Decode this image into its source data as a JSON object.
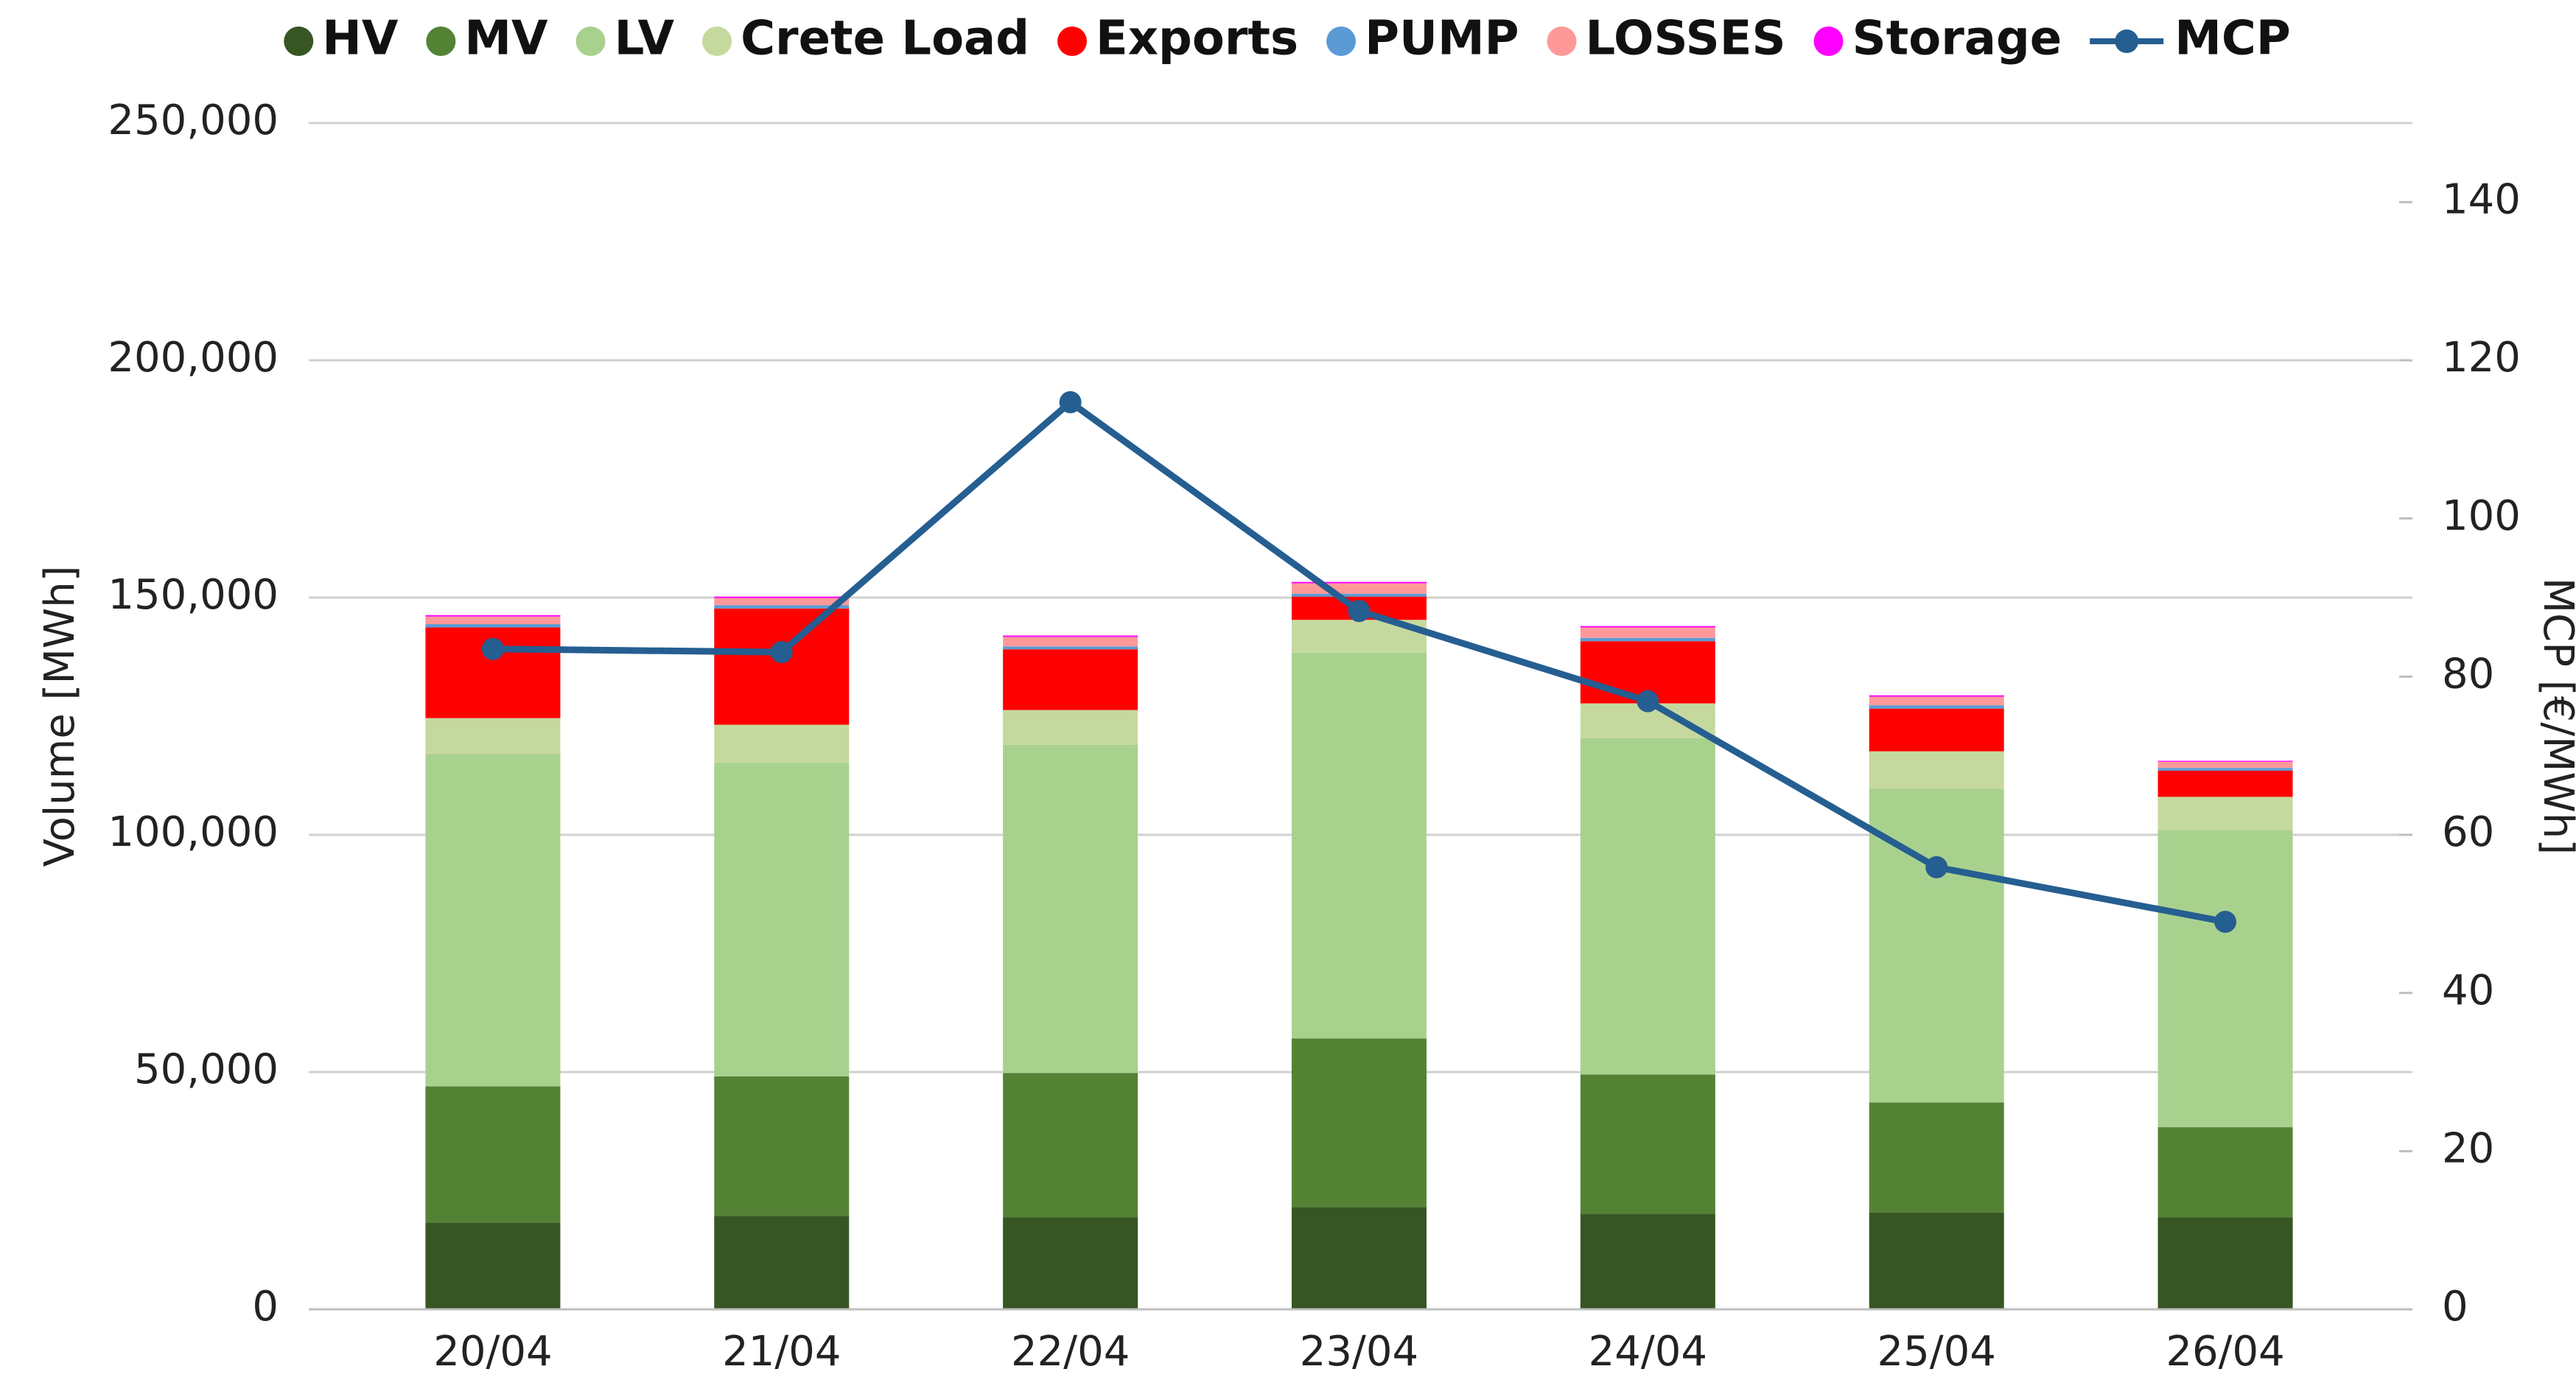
{
  "chart_data": {
    "type": "bar",
    "stacked": true,
    "categories": [
      "20/04",
      "21/04",
      "22/04",
      "23/04",
      "24/04",
      "25/04",
      "26/04"
    ],
    "series": [
      {
        "name": "HV",
        "color": "#375623",
        "values": [
          18300,
          19700,
          19400,
          21500,
          20100,
          20400,
          19400
        ]
      },
      {
        "name": "MV",
        "color": "#548235",
        "values": [
          28700,
          29400,
          30400,
          35600,
          29400,
          23200,
          19000
        ]
      },
      {
        "name": "LV",
        "color": "#a9d18e",
        "values": [
          70000,
          66100,
          69200,
          81300,
          70900,
          66100,
          62600
        ]
      },
      {
        "name": "Crete Load",
        "color": "#c5d99e",
        "values": [
          7600,
          8000,
          7300,
          6900,
          7300,
          7900,
          7000
        ]
      },
      {
        "name": "Exports",
        "color": "#ff0000",
        "values": [
          19100,
          24500,
          12800,
          4900,
          13100,
          9000,
          5500
        ]
      },
      {
        "name": "PUMP",
        "color": "#5b9bd5",
        "values": [
          700,
          700,
          600,
          600,
          700,
          700,
          600
        ]
      },
      {
        "name": "LOSSES",
        "color": "#ff9999",
        "values": [
          1600,
          1500,
          2000,
          2200,
          2200,
          1800,
          1300
        ]
      },
      {
        "name": "Storage",
        "color": "#ff00ff",
        "values": [
          300,
          300,
          300,
          300,
          300,
          300,
          200
        ]
      },
      {
        "name": "MCP",
        "type": "line",
        "axis": "y2",
        "color": "#255e91",
        "values": [
          83.5,
          83.1,
          114.7,
          88.3,
          76.9,
          55.9,
          49.0
        ]
      }
    ],
    "ylabel": "Volume [MWh]",
    "y2label": "MCP [€/MWh]",
    "ylim": [
      0,
      250000
    ],
    "yticks": [
      0,
      {
        "value": 50000,
        "label": "50,000"
      },
      {
        "value": 100000,
        "label": "100,000"
      },
      {
        "value": 150000,
        "label": "150,000"
      },
      {
        "value": 200000,
        "label": "200,000"
      },
      {
        "value": 250000,
        "label": "250,000"
      }
    ],
    "y2lim": [
      0,
      150
    ],
    "y2ticks": [
      0,
      20,
      40,
      60,
      80,
      100,
      120,
      140
    ],
    "grid": true,
    "legend": "top"
  }
}
